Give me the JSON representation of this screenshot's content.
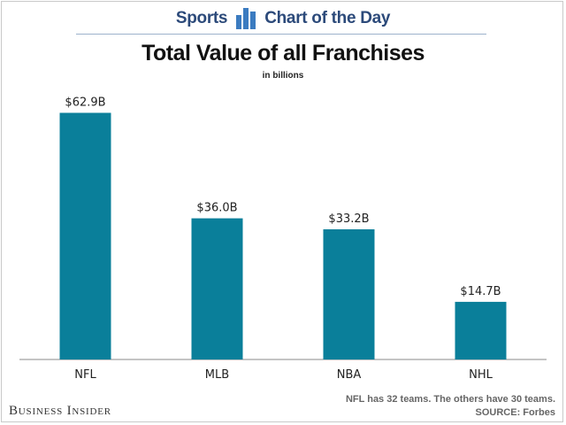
{
  "header": {
    "left": "Sports",
    "right": "Chart of the Day",
    "icon": "bar-chart-icon",
    "color": "#2c4a7a"
  },
  "footer": {
    "brand": "Business Insider",
    "note": "NFL has 32 teams. The others have 30 teams.",
    "source": "SOURCE: Forbes"
  },
  "chart_data": {
    "type": "bar",
    "title": "Total Value of all Franchises",
    "subtitle": "in billions",
    "categories": [
      "NFL",
      "MLB",
      "NBA",
      "NHL"
    ],
    "values": [
      62.9,
      36.0,
      33.2,
      14.7
    ],
    "data_labels": [
      "$62.9B",
      "$36.0B",
      "$33.2B",
      "$14.7B"
    ],
    "unit": "billions USD",
    "ylim": [
      0,
      70
    ],
    "grid": false,
    "bar_color": "#0a7f9a"
  }
}
